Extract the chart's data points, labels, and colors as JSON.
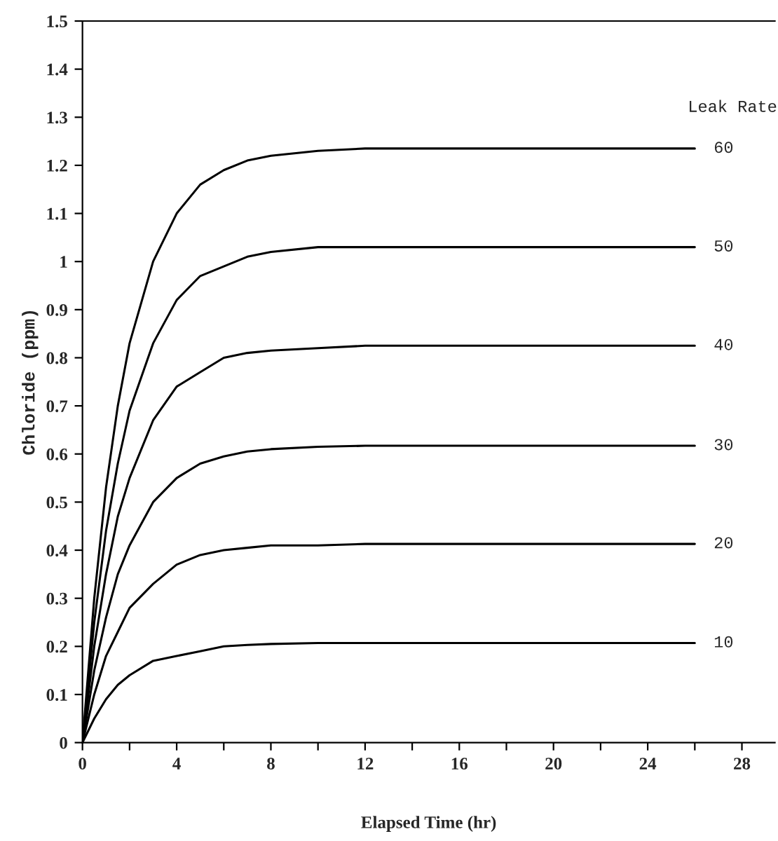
{
  "chart_data": {
    "type": "line",
    "xlabel": "Elapsed Time (hr)",
    "ylabel": "Chloride (ppm)",
    "annotations": [
      "Leak Rate"
    ],
    "x": [
      0,
      0.5,
      1,
      1.5,
      2,
      3,
      4,
      5,
      6,
      7,
      8,
      10,
      12,
      16,
      20,
      26
    ],
    "series": [
      {
        "name": "60",
        "color": "#000000",
        "values": [
          0,
          0.3,
          0.53,
          0.7,
          0.83,
          1.0,
          1.1,
          1.16,
          1.19,
          1.21,
          1.22,
          1.23,
          1.235,
          1.235,
          1.235,
          1.235
        ]
      },
      {
        "name": "50",
        "color": "#000000",
        "values": [
          0,
          0.25,
          0.44,
          0.58,
          0.69,
          0.83,
          0.92,
          0.97,
          0.99,
          1.01,
          1.02,
          1.03,
          1.03,
          1.03,
          1.03,
          1.03
        ]
      },
      {
        "name": "40",
        "color": "#000000",
        "values": [
          0,
          0.2,
          0.35,
          0.47,
          0.55,
          0.67,
          0.74,
          0.77,
          0.8,
          0.81,
          0.815,
          0.82,
          0.825,
          0.825,
          0.825,
          0.825
        ]
      },
      {
        "name": "30",
        "color": "#000000",
        "values": [
          0,
          0.15,
          0.26,
          0.35,
          0.41,
          0.5,
          0.55,
          0.58,
          0.595,
          0.605,
          0.61,
          0.615,
          0.617,
          0.617,
          0.617,
          0.617
        ]
      },
      {
        "name": "20",
        "color": "#000000",
        "values": [
          0,
          0.1,
          0.18,
          0.23,
          0.28,
          0.33,
          0.37,
          0.39,
          0.4,
          0.405,
          0.41,
          0.41,
          0.413,
          0.413,
          0.413,
          0.413
        ]
      },
      {
        "name": "10",
        "color": "#000000",
        "values": [
          0,
          0.05,
          0.09,
          0.12,
          0.14,
          0.17,
          0.18,
          0.19,
          0.2,
          0.203,
          0.205,
          0.207,
          0.207,
          0.207,
          0.207,
          0.207
        ]
      }
    ],
    "xlim": [
      0,
      29.4
    ],
    "xticks": [
      0,
      {
        "value": 2,
        "label": null
      },
      4,
      {
        "value": 6,
        "label": null
      },
      8,
      {
        "value": 10,
        "label": null
      },
      12,
      {
        "value": 14,
        "label": null
      },
      16,
      {
        "value": 18,
        "label": null
      },
      20,
      {
        "value": 22,
        "label": null
      },
      24,
      {
        "value": 26,
        "label": null
      },
      28
    ],
    "ylim": [
      0,
      1.5
    ],
    "yticks": [
      0,
      0.1,
      0.2,
      0.3,
      0.4,
      0.5,
      0.6,
      0.7,
      0.8,
      0.9,
      1,
      1.1,
      1.2,
      1.3,
      1.4,
      1.5
    ],
    "grid": false,
    "marker": "none",
    "line_style": "solid"
  }
}
